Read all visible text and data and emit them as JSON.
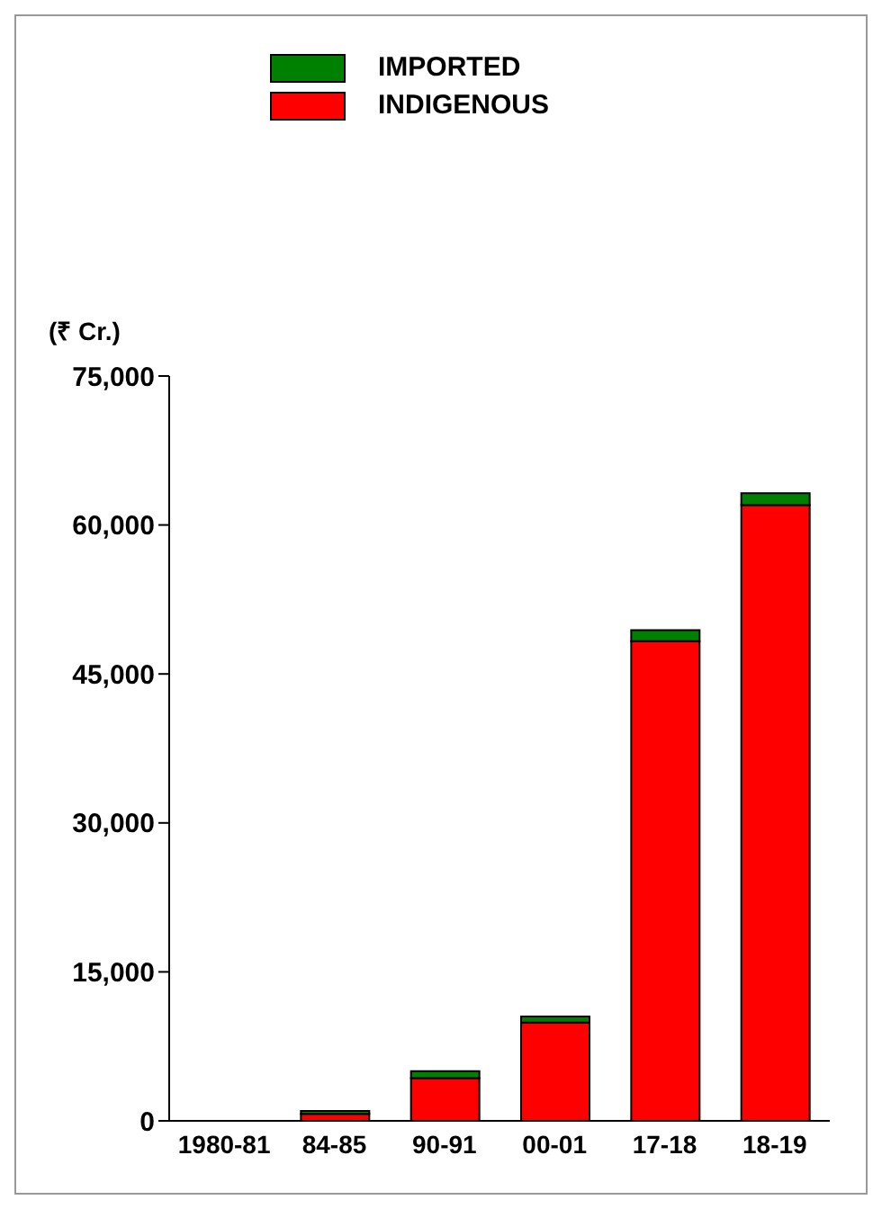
{
  "chart_data": {
    "type": "bar",
    "stacked": true,
    "ylabel": "(₹ Cr.)",
    "categories": [
      "1980-81",
      "84-85",
      "90-91",
      "00-01",
      "17-18",
      "18-19"
    ],
    "series": [
      {
        "name": "INDIGENOUS",
        "color": "#ff0000",
        "values": [
          null,
          700,
          4300,
          9900,
          48300,
          62000
        ]
      },
      {
        "name": "IMPORTED",
        "color": "#008000",
        "values": [
          null,
          300,
          700,
          600,
          1100,
          1200
        ]
      }
    ],
    "ylim": [
      0,
      75000
    ],
    "yticks": [
      {
        "value": 0,
        "label": "0"
      },
      {
        "value": 15000,
        "label": "15,000"
      },
      {
        "value": 30000,
        "label": "30,000"
      },
      {
        "value": 45000,
        "label": "45,000"
      },
      {
        "value": 60000,
        "label": "60,000"
      },
      {
        "value": 75000,
        "label": "75,000"
      }
    ],
    "grid": false,
    "legend": "top"
  }
}
